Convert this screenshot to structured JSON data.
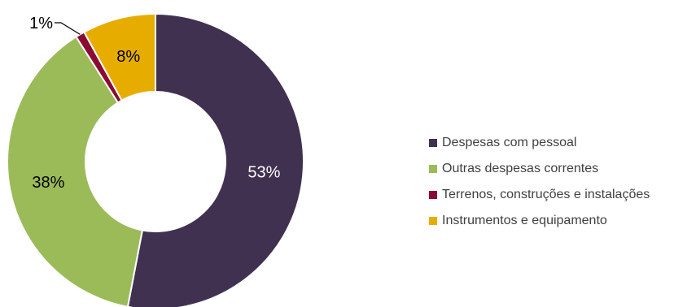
{
  "chart_data": {
    "type": "pie",
    "variant": "donut",
    "title": "",
    "legend_position": "right",
    "series": [
      {
        "categories": [
          "Despesas com pessoal",
          "Outras despesas correntes",
          "Terrenos, construções e instalações",
          "Instrumentos e equipamento"
        ],
        "values": [
          53,
          38,
          1,
          8
        ],
        "labels": [
          "53%",
          "38%",
          "1%",
          "8%"
        ],
        "colors": [
          "#403151",
          "#9BBB59",
          "#8B0A34",
          "#E6AD00"
        ],
        "label_colors": [
          "#ffffff",
          "#000000",
          "#000000",
          "#000000"
        ]
      }
    ]
  }
}
